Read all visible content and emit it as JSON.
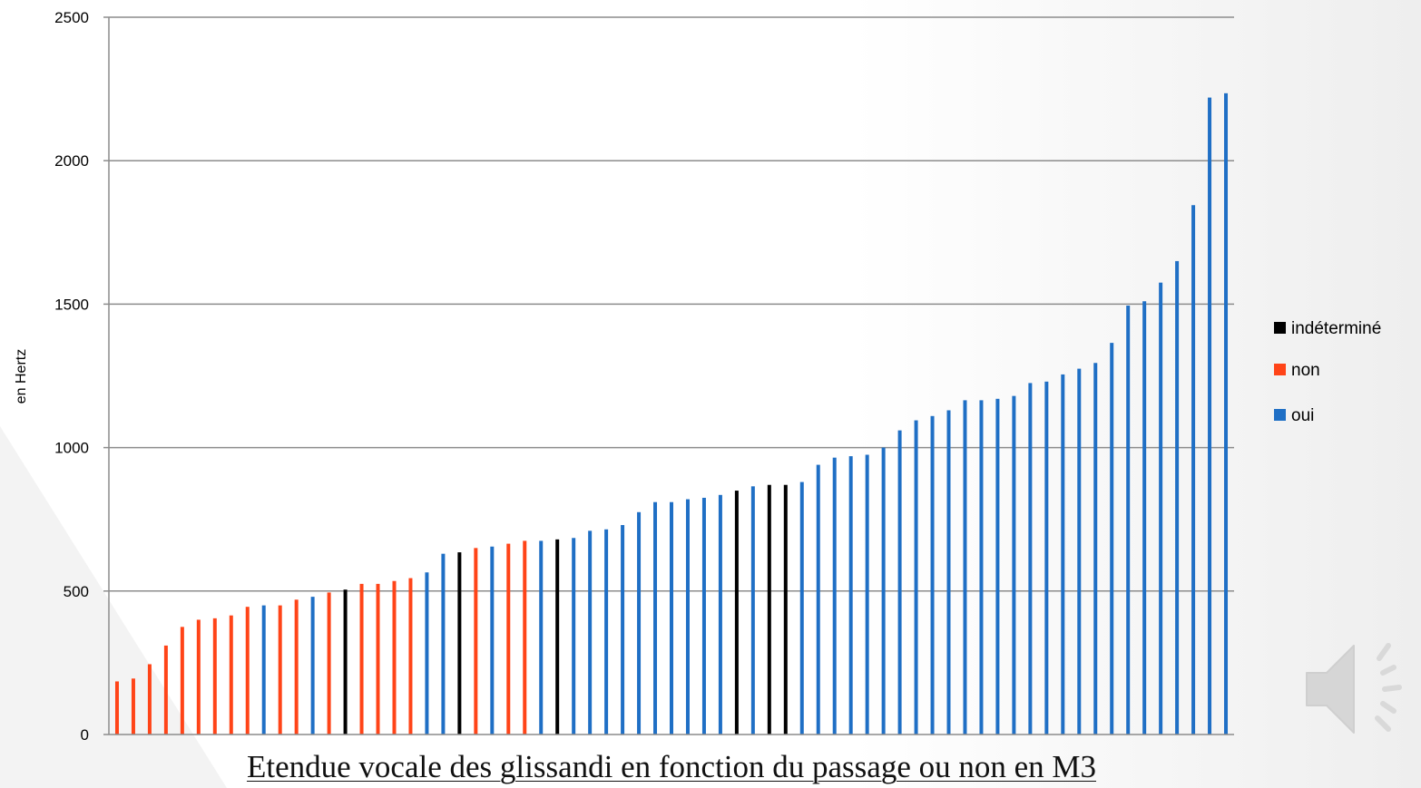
{
  "caption": "Etendue vocale des glissandi en fonction du passage ou non en M3",
  "icons": {
    "speaker": "speaker-icon"
  },
  "colors": {
    "oui": "#1F6FC5",
    "non": "#FF4418",
    "indetermine": "#000000",
    "grid": "#8C8C8C"
  },
  "chart_data": {
    "type": "bar",
    "title": "",
    "xlabel": "",
    "ylabel": "en Hertz",
    "ylim": [
      0,
      2500
    ],
    "yticks": [
      0,
      500,
      1000,
      1500,
      2000,
      2500
    ],
    "grid": true,
    "legend_position": "right",
    "legend": [
      "indéterminé",
      "non",
      "oui"
    ],
    "values": [
      185,
      195,
      245,
      310,
      375,
      400,
      405,
      415,
      445,
      450,
      450,
      470,
      480,
      495,
      505,
      525,
      525,
      535,
      545,
      565,
      630,
      635,
      650,
      655,
      665,
      675,
      675,
      680,
      685,
      710,
      715,
      730,
      775,
      810,
      810,
      820,
      825,
      835,
      850,
      865,
      870,
      870,
      880,
      940,
      965,
      970,
      975,
      1000,
      1060,
      1095,
      1110,
      1130,
      1165,
      1165,
      1170,
      1180,
      1225,
      1230,
      1255,
      1275,
      1295,
      1365,
      1495,
      1510,
      1575,
      1650,
      1845,
      2220,
      2235
    ],
    "categories_group": [
      "non",
      "non",
      "non",
      "non",
      "non",
      "non",
      "non",
      "non",
      "non",
      "oui",
      "non",
      "non",
      "oui",
      "non",
      "indéterminé",
      "non",
      "non",
      "non",
      "non",
      "oui",
      "oui",
      "indéterminé",
      "non",
      "oui",
      "non",
      "non",
      "oui",
      "indéterminé",
      "oui",
      "oui",
      "oui",
      "oui",
      "oui",
      "oui",
      "oui",
      "oui",
      "oui",
      "oui",
      "indéterminé",
      "oui",
      "indéterminé",
      "indéterminé",
      "oui",
      "oui",
      "oui",
      "oui",
      "oui",
      "oui",
      "oui",
      "oui",
      "oui",
      "oui",
      "oui",
      "oui",
      "oui",
      "oui",
      "oui",
      "oui",
      "oui",
      "oui",
      "oui",
      "oui",
      "oui",
      "oui",
      "oui",
      "oui",
      "oui",
      "oui",
      "oui"
    ]
  }
}
